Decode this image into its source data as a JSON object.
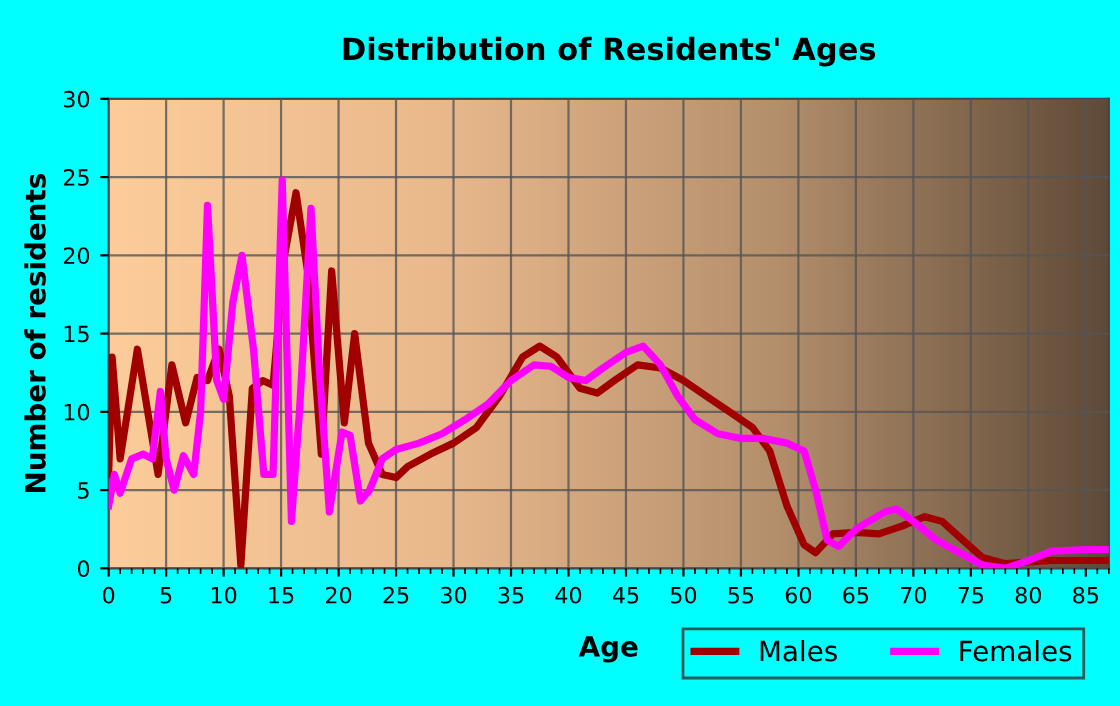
{
  "chart_data": {
    "type": "line",
    "title": "Distribution of Residents' Ages",
    "xlabel": "Age",
    "ylabel": "Number of residents",
    "xlim": [
      0,
      87
    ],
    "xticks": [
      0,
      5,
      10,
      15,
      20,
      25,
      30,
      35,
      40,
      45,
      50,
      55,
      60,
      65,
      70,
      75,
      80,
      85
    ],
    "ylim": [
      0,
      30
    ],
    "yticks": [
      0,
      5,
      10,
      15,
      20,
      25,
      30
    ],
    "grid": true,
    "legend": "bottom right",
    "marker": "none",
    "line_style": "solid",
    "series": [
      {
        "name": "Males",
        "color": "#a00000",
        "x": [
          0,
          0.3,
          1,
          2.5,
          4.3,
          5.5,
          6.7,
          7.7,
          8.6,
          9.6,
          10.5,
          11.5,
          12.5,
          13.4,
          14.3,
          15.3,
          16.3,
          17.3,
          18.5,
          19.4,
          20.5,
          21.4,
          22.6,
          23.8,
          25,
          26,
          28,
          30,
          32,
          34,
          36,
          37.5,
          39,
          41,
          42.5,
          44,
          46,
          48,
          50,
          52,
          54,
          56,
          57.5,
          59,
          60.5,
          61.5,
          63,
          65,
          67,
          69,
          71,
          72.5,
          74,
          76,
          78,
          82,
          87
        ],
        "values": [
          6,
          13.5,
          7,
          14,
          6,
          13,
          9.3,
          12.2,
          12,
          14,
          11,
          0.2,
          11.5,
          12,
          11.7,
          20,
          24,
          19,
          7.3,
          19,
          9.3,
          15,
          8,
          6,
          5.8,
          6.5,
          7.3,
          8,
          9,
          11,
          13.5,
          14.2,
          13.5,
          11.5,
          11.2,
          12,
          13,
          12.8,
          12,
          11,
          10,
          9,
          7.5,
          4,
          1.5,
          1,
          2.2,
          2.3,
          2.2,
          2.7,
          3.3,
          3,
          2,
          0.7,
          0.3,
          0.5,
          0.5
        ]
      },
      {
        "name": "Females",
        "color": "#ff00ff",
        "x": [
          0,
          0.5,
          1,
          2,
          3,
          3.8,
          4.5,
          5,
          5.7,
          6.5,
          7.4,
          8,
          8.6,
          9.4,
          10,
          10.8,
          11.6,
          12.6,
          13.5,
          14.3,
          15.1,
          15.9,
          16.6,
          17.6,
          18.3,
          19.2,
          20.3,
          21,
          21.9,
          22.7,
          23.8,
          25,
          27,
          29,
          31,
          33,
          35,
          37,
          38.5,
          40,
          41.5,
          43,
          45,
          46.5,
          48,
          49.5,
          51,
          53,
          55,
          57,
          59,
          60.5,
          61.5,
          62.5,
          63.5,
          65,
          67.5,
          68.5,
          70,
          72,
          74,
          76,
          78,
          80,
          82,
          85,
          87
        ],
        "values": [
          4,
          6,
          4.8,
          7,
          7.3,
          7,
          11.3,
          7,
          5,
          7.2,
          6,
          10,
          23.2,
          12,
          10.8,
          17,
          20,
          14,
          6,
          6,
          24.8,
          3,
          10,
          23,
          13,
          3.6,
          8.7,
          8.5,
          4.3,
          5,
          7,
          7.6,
          8,
          8.6,
          9.5,
          10.5,
          12,
          13,
          12.9,
          12.2,
          12,
          12.8,
          13.8,
          14.2,
          13,
          11,
          9.5,
          8.6,
          8.3,
          8.3,
          8,
          7.5,
          5,
          1.8,
          1.4,
          2.5,
          3.6,
          3.8,
          3,
          1.8,
          1,
          0.2,
          0,
          0.5,
          1.1,
          1.2,
          1.2
        ]
      }
    ]
  }
}
